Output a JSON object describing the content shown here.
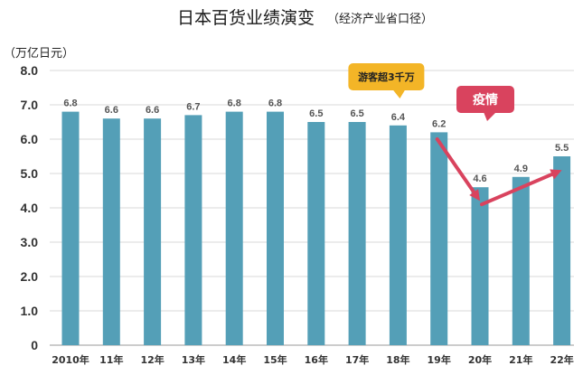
{
  "chart_data": {
    "type": "bar",
    "title": "日本百货业绩演变",
    "subtitle": "（经济产业省口径）",
    "ylabel": "（万亿日元）",
    "categories": [
      "2010年",
      "11年",
      "12年",
      "13年",
      "14年",
      "15年",
      "16年",
      "17年",
      "18年",
      "19年",
      "20年",
      "21年",
      "22年"
    ],
    "values": [
      6.8,
      6.6,
      6.6,
      6.7,
      6.8,
      6.8,
      6.5,
      6.5,
      6.4,
      6.2,
      4.6,
      4.9,
      5.5
    ],
    "ylim": [
      0,
      8
    ],
    "yticks": [
      "0",
      "1.0",
      "2.0",
      "3.0",
      "4.0",
      "5.0",
      "6.0",
      "7.0",
      "8.0"
    ],
    "grid": true,
    "annotations": [
      {
        "text": "游客超3千万",
        "category": "18年",
        "color": "#f3b527"
      },
      {
        "text": "疫情",
        "category": "20年",
        "color": "#d9435e"
      }
    ],
    "bar_color": "#549fb7",
    "arrow_color": "#d9435e"
  }
}
